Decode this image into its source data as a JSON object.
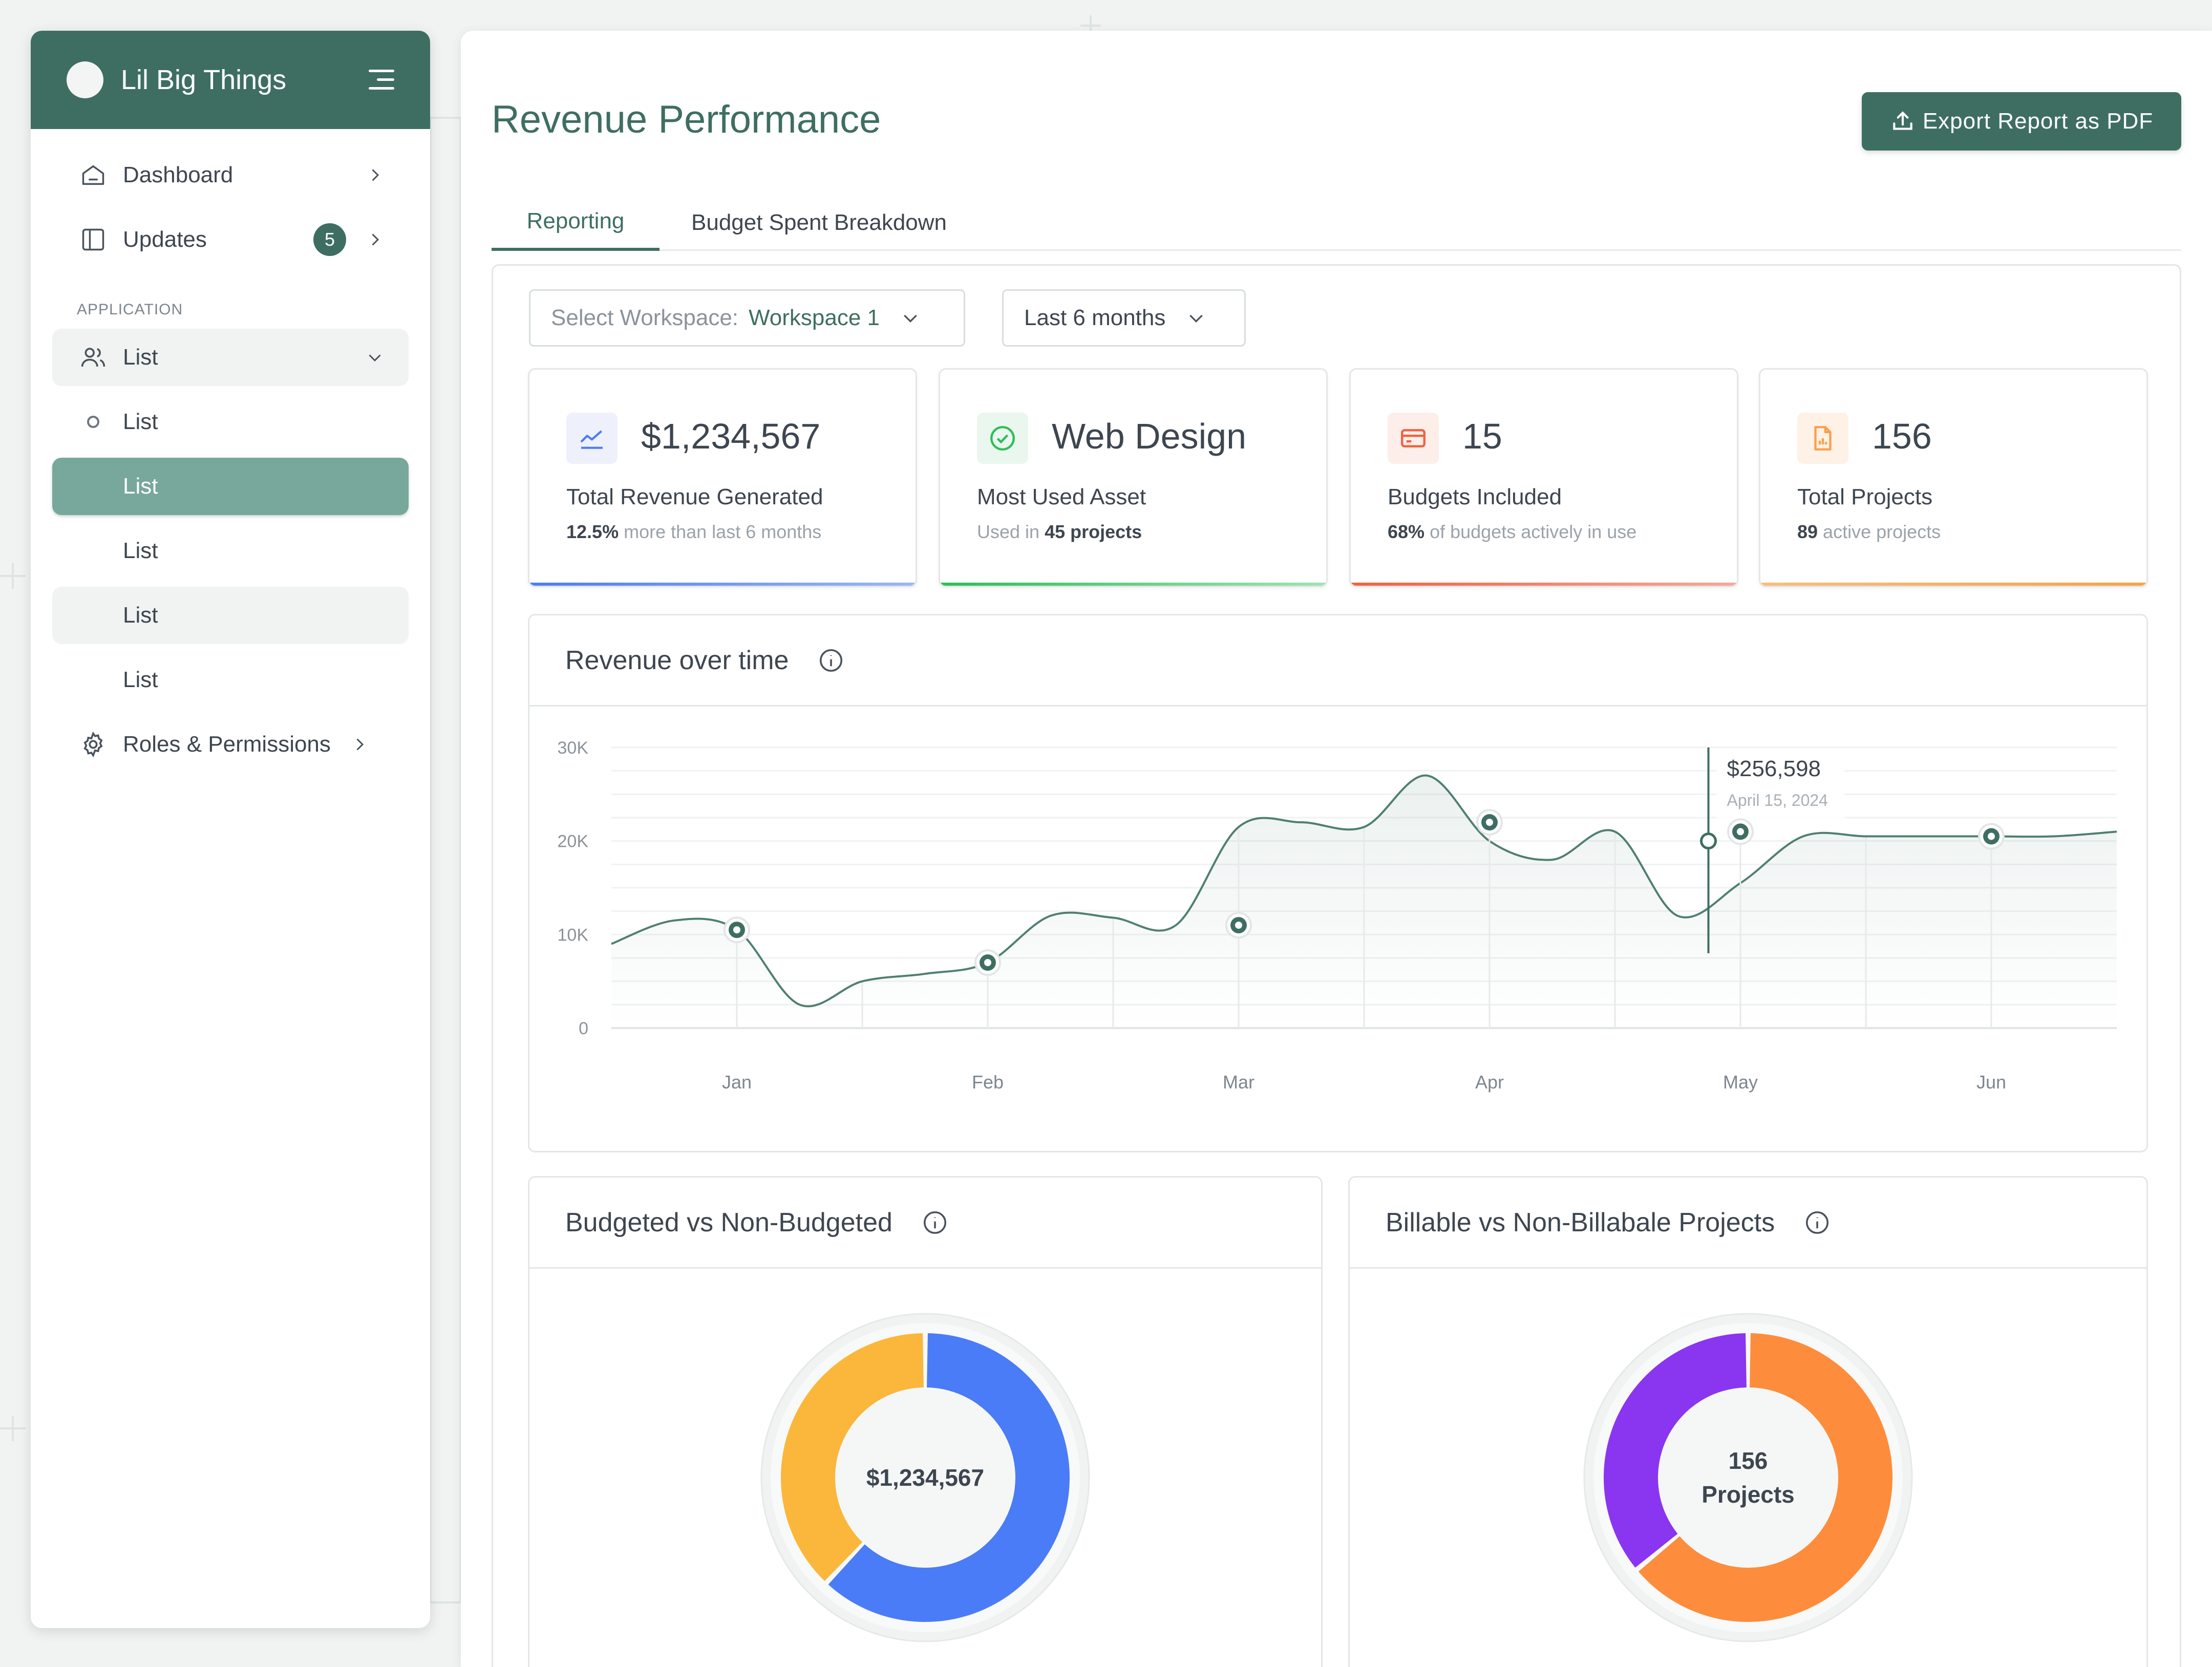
{
  "sidebar": {
    "app_name": "Lil Big Things",
    "items": [
      {
        "label": "Dashboard",
        "icon": "home-icon"
      },
      {
        "label": "Updates",
        "icon": "panel-icon",
        "badge": "5"
      }
    ],
    "section_label": "APPLICATION",
    "group": {
      "label": "List",
      "icon": "users-icon"
    },
    "sub_items": [
      "List",
      "List",
      "List",
      "List",
      "List"
    ],
    "roles": {
      "label": "Roles & Permissions",
      "icon": "gear-icon"
    }
  },
  "header": {
    "title": "Revenue Performance",
    "export_label": "Export Report as PDF"
  },
  "tabs": [
    {
      "label": "Reporting",
      "active": true
    },
    {
      "label": "Budget Spent Breakdown",
      "active": false
    }
  ],
  "filters": {
    "workspace_placeholder": "Select Workspace:",
    "workspace_value": "Workspace 1",
    "period": "Last 6 months"
  },
  "stats": [
    {
      "value": "$1,234,567",
      "label": "Total Revenue Generated",
      "sub_bold": "12.5%",
      "sub_text": " more than last 6 months",
      "icon": "trend-chart-icon",
      "accent": "#4d7cf5"
    },
    {
      "value": "Web Design",
      "label": "Most Used Asset",
      "sub_text": "Used in ",
      "sub_bold": "45 projects",
      "icon": "check-circle-icon",
      "accent": "#2ebd59"
    },
    {
      "value": "15",
      "label": "Budgets Included",
      "sub_bold": "68%",
      "sub_text": " of budgets actively in use",
      "icon": "credit-card-icon",
      "accent": "#f2613f"
    },
    {
      "value": "156",
      "label": "Total Projects",
      "sub_bold": "89",
      "sub_text": " active projects",
      "icon": "file-chart-icon",
      "accent": "#f8a14a"
    }
  ],
  "chart_data": [
    {
      "type": "line",
      "title": "Revenue over time",
      "categories": [
        "Jan",
        "Feb",
        "Mar",
        "Apr",
        "May",
        "Jun"
      ],
      "y_ticks": [
        "30K",
        "20K",
        "10K",
        "0"
      ],
      "ylim": [
        0,
        30000
      ],
      "x": [
        0,
        0.5,
        1,
        1.5,
        2,
        2.5,
        3,
        3.5,
        4,
        4.5,
        5,
        5.5,
        6,
        6.5,
        7,
        7.5,
        8,
        8.5,
        9,
        9.5,
        10,
        10.5,
        11,
        11.5,
        12
      ],
      "values": [
        9000,
        11500,
        10500,
        2500,
        5000,
        5800,
        7000,
        12000,
        11800,
        11000,
        21500,
        22000,
        21500,
        27000,
        20000,
        18000,
        21000,
        12000,
        15500,
        20500,
        20500,
        20500,
        20500,
        20500,
        21000
      ],
      "markers": [
        {
          "category": "Jan",
          "value": 10500
        },
        {
          "category": "Feb",
          "value": 7000
        },
        {
          "category": "Mar",
          "value": 11000
        },
        {
          "category": "Apr",
          "value": 22000
        },
        {
          "category": "May",
          "value": 21000
        },
        {
          "category": "Jun",
          "value": 20500
        }
      ],
      "tooltip": {
        "value": "$256,598",
        "date": "April 15, 2024",
        "at_value": 20000
      },
      "line_color": "#4f7f72",
      "grid": true
    },
    {
      "type": "pie",
      "title": "Budgeted vs Non-Budgeted",
      "center_label": "$1,234,567",
      "slices": [
        {
          "value": 62,
          "color": "#4b7cf7"
        },
        {
          "value": 38,
          "color": "#fbb73b"
        }
      ]
    },
    {
      "type": "pie",
      "title": "Billable vs Non-Billabale Projects",
      "center_label": "156\nProjects",
      "slices": [
        {
          "value": 64,
          "color": "#fd8d3c"
        },
        {
          "value": 36,
          "color": "#8a35f0"
        }
      ]
    }
  ]
}
